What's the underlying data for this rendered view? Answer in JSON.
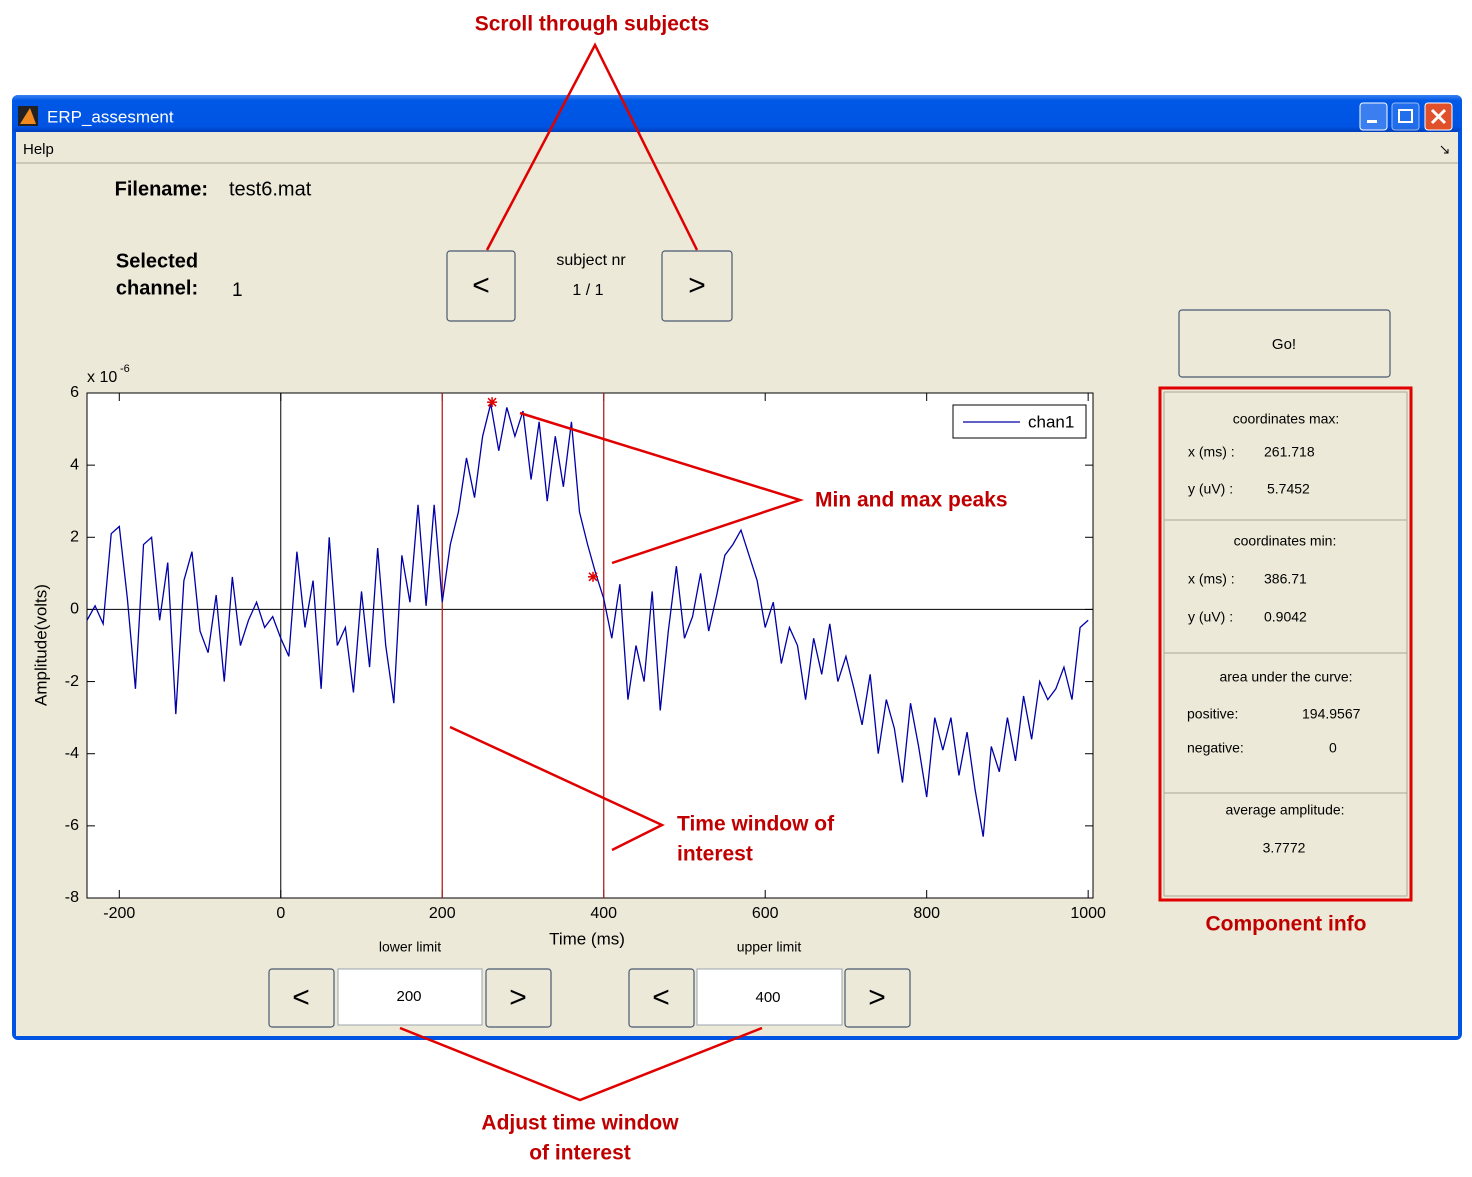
{
  "window": {
    "title": "ERP_assesment",
    "menu": [
      "Help"
    ]
  },
  "file": {
    "label": "Filename:",
    "value": "test6.mat"
  },
  "channel": {
    "label_lines": [
      "Selected",
      "channel:"
    ],
    "value": "1"
  },
  "subject": {
    "label": "subject nr",
    "value": "1 / 1",
    "prev": "<",
    "next": ">"
  },
  "go_button": "Go!",
  "limits": {
    "lower": {
      "label": "lower limit",
      "prev": "<",
      "next": ">"
    },
    "upper": {
      "label": "upper limit",
      "prev": "<",
      "next": ">"
    }
  },
  "chart_data": {
    "type": "line",
    "xlabel": "Time (ms)",
    "ylabel": "Amplitude(volts)",
    "y_exponent_base": "x 10",
    "y_exponent": "-6",
    "xlim": [
      -240,
      1006
    ],
    "ylim": [
      -8,
      6
    ],
    "xticks": [
      -200,
      0,
      200,
      400,
      600,
      800,
      1000
    ],
    "yticks": [
      -8,
      -6,
      -4,
      -2,
      0,
      2,
      4,
      6
    ],
    "zero_lines": true,
    "legend": "upper right",
    "window_of_interest": [
      200,
      400
    ],
    "window_color": "#b22222",
    "peak_color": "#e00000",
    "peaks": {
      "max": {
        "x": 261.718,
        "y": 5.7452
      },
      "min": {
        "x": 386.71,
        "y": 0.9042
      }
    },
    "x": [
      -240,
      -230,
      -220,
      -210,
      -200,
      -190,
      -180,
      -170,
      -160,
      -150,
      -140,
      -130,
      -120,
      -110,
      -100,
      -90,
      -80,
      -70,
      -60,
      -50,
      -40,
      -30,
      -20,
      -10,
      0,
      10,
      20,
      30,
      40,
      50,
      60,
      70,
      80,
      90,
      100,
      110,
      120,
      130,
      140,
      150,
      160,
      170,
      180,
      190,
      200,
      210,
      220,
      230,
      240,
      250,
      260,
      270,
      280,
      290,
      300,
      310,
      320,
      330,
      340,
      350,
      360,
      370,
      380,
      390,
      400,
      410,
      420,
      430,
      440,
      450,
      460,
      470,
      480,
      490,
      500,
      510,
      520,
      530,
      540,
      550,
      560,
      570,
      580,
      590,
      600,
      610,
      620,
      630,
      640,
      650,
      660,
      670,
      680,
      690,
      700,
      710,
      720,
      730,
      740,
      750,
      760,
      770,
      780,
      790,
      800,
      810,
      820,
      830,
      840,
      850,
      860,
      870,
      880,
      890,
      900,
      910,
      920,
      930,
      940,
      950,
      960,
      970,
      980,
      990,
      1000
    ],
    "series": [
      {
        "name": "chan1",
        "color": "#0000a8",
        "values": [
          -0.3,
          0.1,
          -0.4,
          2.1,
          2.3,
          0.3,
          -2.2,
          1.8,
          2.0,
          -0.3,
          1.3,
          -2.9,
          0.8,
          1.6,
          -0.6,
          -1.2,
          0.4,
          -2.0,
          0.9,
          -1.0,
          -0.3,
          0.2,
          -0.5,
          -0.2,
          -0.8,
          -1.3,
          1.6,
          -0.5,
          0.8,
          -2.2,
          2.0,
          -1.0,
          -0.5,
          -2.3,
          0.5,
          -1.6,
          1.7,
          -1.0,
          -2.6,
          1.5,
          0.2,
          2.9,
          0.1,
          2.9,
          0.2,
          1.8,
          2.7,
          4.2,
          3.1,
          4.8,
          5.7,
          4.4,
          5.6,
          4.8,
          5.5,
          3.6,
          5.2,
          3.0,
          4.8,
          3.4,
          5.2,
          2.7,
          1.8,
          1.0,
          0.3,
          -0.8,
          0.7,
          -2.5,
          -1.0,
          -2.0,
          0.5,
          -2.8,
          -0.6,
          1.2,
          -0.8,
          -0.2,
          1.0,
          -0.6,
          0.4,
          1.5,
          1.8,
          2.2,
          1.5,
          0.8,
          -0.5,
          0.2,
          -1.5,
          -0.5,
          -1.0,
          -2.5,
          -0.8,
          -1.8,
          -0.4,
          -2.0,
          -1.3,
          -2.2,
          -3.2,
          -1.8,
          -4.0,
          -2.5,
          -3.3,
          -4.8,
          -2.6,
          -3.8,
          -5.2,
          -3.0,
          -3.9,
          -3.0,
          -4.6,
          -3.4,
          -5.0,
          -6.3,
          -3.8,
          -4.5,
          -3.0,
          -4.2,
          -2.4,
          -3.6,
          -2.0,
          -2.5,
          -2.2,
          -1.6,
          -2.5,
          -0.5,
          -0.3
        ]
      }
    ]
  },
  "component_info": {
    "max": {
      "title": "coordinates max:",
      "x_label": "x (ms) :",
      "y_label": "y (uV) :"
    },
    "min": {
      "title": "coordinates min:",
      "x_label": "x (ms) :",
      "y_label": "y (uV) :"
    },
    "area": {
      "title": "area under the curve:",
      "positive_label": "positive:",
      "positive": 194.9567,
      "negative_label": "negative:",
      "negative": 0
    },
    "average": {
      "title": "average amplitude:",
      "value": 3.7772
    }
  },
  "annotations": [
    {
      "lines": [
        "Scroll through subjects"
      ]
    },
    {
      "lines": [
        "Min and max peaks"
      ]
    },
    {
      "lines": [
        "Time window of",
        "interest"
      ]
    },
    {
      "lines": [
        "Component info"
      ]
    },
    {
      "lines": [
        "Adjust time window",
        "of interest"
      ]
    }
  ]
}
